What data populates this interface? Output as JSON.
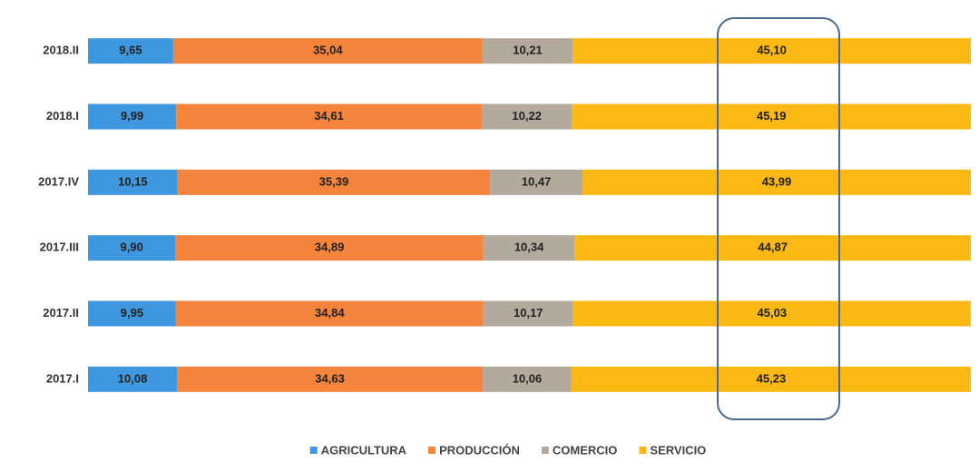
{
  "chart_data": {
    "type": "bar",
    "orientation": "horizontal",
    "stacked": true,
    "categories": [
      "2018.II",
      "2018.I",
      "2017.IV",
      "2017.III",
      "2017.II",
      "2017.I"
    ],
    "series": [
      {
        "name": "AGRICULTURA",
        "color": "#3f97e0",
        "values": [
          9.65,
          9.99,
          10.15,
          9.9,
          9.95,
          10.08
        ],
        "value_labels": [
          "9,65",
          "9,99",
          "10,15",
          "9,90",
          "9,95",
          "10,08"
        ]
      },
      {
        "name": "PRODUCCIÓN",
        "color": "#f5843c",
        "values": [
          35.04,
          34.61,
          35.39,
          34.89,
          34.84,
          34.63
        ],
        "value_labels": [
          "35,04",
          "34,61",
          "35,39",
          "34,89",
          "34,84",
          "34,63"
        ]
      },
      {
        "name": "COMERCIO",
        "color": "#b3a99c",
        "values": [
          10.21,
          10.22,
          10.47,
          10.34,
          10.17,
          10.06
        ],
        "value_labels": [
          "10,21",
          "10,22",
          "10,47",
          "10,34",
          "10,17",
          "10,06"
        ]
      },
      {
        "name": "SERVICIO",
        "color": "#fdb913",
        "values": [
          45.1,
          45.19,
          43.99,
          44.87,
          45.03,
          45.23
        ],
        "value_labels": [
          "45,10",
          "45,19",
          "43,99",
          "44,87",
          "45,03",
          "45,23"
        ]
      }
    ],
    "xlim": [
      0,
      100
    ],
    "legend": "bottom"
  }
}
